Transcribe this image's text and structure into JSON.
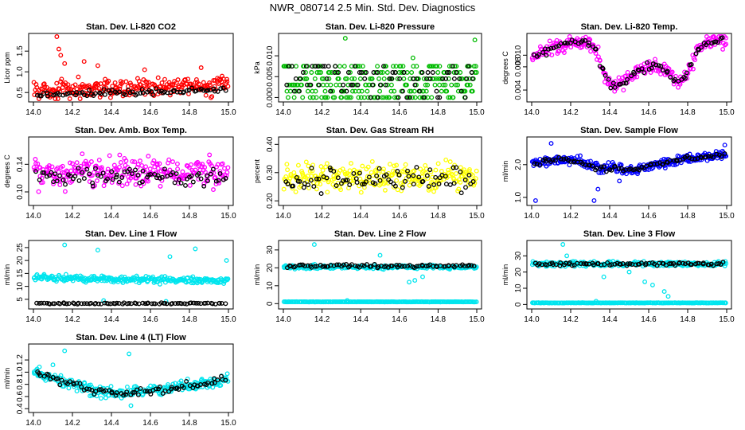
{
  "figure_title": "NWR_080714  2.5 Min. Std. Dev. Diagnostics",
  "chart_data": [
    {
      "type": "scatter",
      "title": "Stan. Dev. Li-820 CO2",
      "ylabel": "Licor ppm",
      "color": "#ff0000",
      "xlim": [
        14.0,
        15.0
      ],
      "ylim": [
        0.35,
        1.85
      ],
      "xticks": [
        "14.0",
        "14.2",
        "14.4",
        "14.6",
        "14.8",
        "15.0"
      ],
      "yticks": [
        {
          "v": 0.5,
          "label": "0.5"
        },
        {
          "v": 1.0,
          "label": "1.0"
        },
        {
          "v": 1.5,
          "label": "1.5"
        }
      ],
      "series": {
        "base": 0.55,
        "trend": 0.12,
        "spread": 0.22,
        "n": 260,
        "black_level": 0.45,
        "black_spread": 0.08,
        "outliers": [
          [
            14.12,
            1.85
          ],
          [
            14.13,
            1.55
          ],
          [
            14.14,
            1.4
          ],
          [
            14.16,
            1.2
          ],
          [
            14.26,
            1.25
          ],
          [
            14.33,
            1.15
          ],
          [
            14.57,
            1.05
          ],
          [
            14.86,
            1.1
          ]
        ]
      }
    },
    {
      "type": "scatter",
      "title": "Stan. Dev. Li-820 Pressure",
      "ylabel": "kPa",
      "color": "#00bb00",
      "xlim": [
        14.0,
        15.0
      ],
      "ylim": [
        -0.0003,
        0.0146
      ],
      "xticks": [
        "14.0",
        "14.2",
        "14.4",
        "14.6",
        "14.8",
        "15.0"
      ],
      "yticks": [
        {
          "v": 0.0,
          "label": "0.000"
        },
        {
          "v": 0.005,
          "label": "0.005"
        },
        {
          "v": 0.01,
          "label": "0.010"
        }
      ],
      "series": {
        "base": 0.003,
        "trend": 0,
        "spread": 0.004,
        "n": 260,
        "black_level": 0.003,
        "black_spread": 0.004,
        "quantized": [
          0.0,
          0.0015,
          0.003,
          0.0045,
          0.006,
          0.0075
        ],
        "outliers": [
          [
            14.32,
            0.0142
          ],
          [
            14.99,
            0.0138
          ],
          [
            14.67,
            0.0095
          ]
        ]
      }
    },
    {
      "type": "scatter",
      "title": "Stan. Dev. Li-820 Temp.",
      "ylabel": "degrees C",
      "color": "#ff00ff",
      "xlim": [
        14.0,
        15.0
      ],
      "ylim": [
        0.0025,
        0.0132
      ],
      "xticks": [
        "14.0",
        "14.2",
        "14.4",
        "14.6",
        "14.8",
        "15.0"
      ],
      "yticks": [
        {
          "v": 0.004,
          "label": "0.004"
        },
        {
          "v": 0.008,
          "label": "0.008"
        },
        {
          "v": 0.01,
          "label": "0.010"
        }
      ],
      "series": {
        "profile": [
          [
            14.0,
            0.0095
          ],
          [
            14.05,
            0.0105
          ],
          [
            14.1,
            0.011
          ],
          [
            14.2,
            0.0122
          ],
          [
            14.28,
            0.0122
          ],
          [
            14.33,
            0.0108
          ],
          [
            14.38,
            0.006
          ],
          [
            14.42,
            0.0045
          ],
          [
            14.47,
            0.0052
          ],
          [
            14.5,
            0.0062
          ],
          [
            14.55,
            0.0075
          ],
          [
            14.6,
            0.008
          ],
          [
            14.65,
            0.0082
          ],
          [
            14.7,
            0.007
          ],
          [
            14.75,
            0.005
          ],
          [
            14.8,
            0.007
          ],
          [
            14.85,
            0.0108
          ],
          [
            14.9,
            0.0122
          ],
          [
            15.0,
            0.0128
          ]
        ],
        "spread": 0.0013,
        "n": 260,
        "black_spread": 0.0006
      }
    },
    {
      "type": "scatter",
      "title": "Stan. Dev. Amb. Box Temp.",
      "ylabel": "degrees C",
      "color": "#ff00ff",
      "xlim": [
        14.0,
        15.0
      ],
      "ylim": [
        0.085,
        0.175
      ],
      "xticks": [
        "14.0",
        "14.2",
        "14.4",
        "14.6",
        "14.8",
        "15.0"
      ],
      "yticks": [
        {
          "v": 0.1,
          "label": "0.10"
        },
        {
          "v": 0.14,
          "label": "0.14"
        }
      ],
      "series": {
        "base": 0.128,
        "trend": 0,
        "spread": 0.022,
        "n": 260,
        "black_level": 0.123,
        "black_spread": 0.012
      }
    },
    {
      "type": "scatter",
      "title": "Stan. Dev. Gas Stream RH",
      "ylabel": "percent",
      "color": "#ffff00",
      "xlim": [
        14.0,
        15.0
      ],
      "ylim": [
        0.195,
        0.415
      ],
      "xticks": [
        "14.0",
        "14.2",
        "14.4",
        "14.6",
        "14.8",
        "15.0"
      ],
      "yticks": [
        {
          "v": 0.2,
          "label": "0.20"
        },
        {
          "v": 0.3,
          "label": "0.30"
        },
        {
          "v": 0.4,
          "label": "0.40"
        }
      ],
      "series": {
        "base": 0.285,
        "trend": 0,
        "spread": 0.045,
        "n": 260,
        "black_level": 0.28,
        "black_spread": 0.04
      }
    },
    {
      "type": "scatter",
      "title": "Stan. Dev. Sample Flow",
      "ylabel": "ml/min",
      "color": "#0000ff",
      "xlim": [
        14.0,
        15.0
      ],
      "ylim": [
        0.85,
        2.75
      ],
      "xticks": [
        "14.0",
        "14.2",
        "14.4",
        "14.6",
        "14.8",
        "15.0"
      ],
      "yticks": [
        {
          "v": 1.0,
          "label": "1.0"
        },
        {
          "v": 2.0,
          "label": "2.0"
        }
      ],
      "series": {
        "profile": [
          [
            14.0,
            2.05
          ],
          [
            14.2,
            2.15
          ],
          [
            14.35,
            1.9
          ],
          [
            14.5,
            1.85
          ],
          [
            14.65,
            2.0
          ],
          [
            14.8,
            2.2
          ],
          [
            15.0,
            2.3
          ]
        ],
        "spread": 0.15,
        "n": 260,
        "black_spread": 0.08,
        "outliers": [
          [
            14.02,
            0.9
          ],
          [
            14.32,
            0.9
          ],
          [
            14.34,
            1.25
          ],
          [
            14.45,
            1.5
          ],
          [
            14.1,
            2.65
          ],
          [
            14.99,
            2.6
          ]
        ]
      }
    },
    {
      "type": "scatter",
      "title": "Stan. Dev. Line 1 Flow",
      "ylabel": "ml/min",
      "color": "#00e5ee",
      "xlim": [
        14.0,
        15.0
      ],
      "ylim": [
        2.5,
        26.5
      ],
      "xticks": [
        "14.0",
        "14.2",
        "14.4",
        "14.6",
        "14.8",
        "15.0"
      ],
      "yticks": [
        {
          "v": 5,
          "label": "5"
        },
        {
          "v": 10,
          "label": "10"
        },
        {
          "v": 15,
          "label": "15"
        },
        {
          "v": 20,
          "label": "20"
        },
        {
          "v": 25,
          "label": "25"
        }
      ],
      "series": {
        "base": 13.5,
        "trend": -1.5,
        "spread": 1.2,
        "n": 260,
        "black_level": 3.4,
        "black_spread": 0.25,
        "outliers": [
          [
            14.16,
            26
          ],
          [
            14.33,
            24
          ],
          [
            14.7,
            21.5
          ],
          [
            14.83,
            24.5
          ],
          [
            14.99,
            20
          ],
          [
            14.36,
            4.5
          ],
          [
            14.68,
            4.2
          ]
        ]
      }
    },
    {
      "type": "scatter",
      "title": "Stan. Dev. Line 2 Flow",
      "ylabel": "ml/min",
      "color": "#00e5ee",
      "xlim": [
        14.0,
        15.0
      ],
      "ylim": [
        -1.2,
        33.5
      ],
      "xticks": [
        "14.0",
        "14.2",
        "14.4",
        "14.6",
        "14.8",
        "15.0"
      ],
      "yticks": [
        {
          "v": 0,
          "label": "0"
        },
        {
          "v": 10,
          "label": "10"
        },
        {
          "v": 20,
          "label": "20"
        },
        {
          "v": 30,
          "label": "30"
        }
      ],
      "series": {
        "base": 20.5,
        "trend": 0,
        "spread": 1.0,
        "n": 260,
        "black_level": 21,
        "black_spread": 0.8,
        "low_line": 1.0,
        "outliers": [
          [
            14.16,
            33
          ],
          [
            14.5,
            27
          ],
          [
            14.65,
            12
          ],
          [
            14.68,
            13
          ],
          [
            14.72,
            15
          ],
          [
            14.33,
            1.8
          ]
        ]
      }
    },
    {
      "type": "scatter",
      "title": "Stan. Dev. Line 3 Flow",
      "ylabel": "ml/min",
      "color": "#00e5ee",
      "xlim": [
        14.0,
        15.0
      ],
      "ylim": [
        -0.8,
        37.5
      ],
      "xticks": [
        "14.0",
        "14.2",
        "14.4",
        "14.6",
        "14.8",
        "15.0"
      ],
      "yticks": [
        {
          "v": 0,
          "label": "0"
        },
        {
          "v": 10,
          "label": "10"
        },
        {
          "v": 20,
          "label": "20"
        },
        {
          "v": 30,
          "label": "30"
        }
      ],
      "series": {
        "base": 25,
        "trend": 0,
        "spread": 1.5,
        "n": 260,
        "black_level": 25,
        "black_spread": 1.0,
        "low_line": 1.0,
        "outliers": [
          [
            14.16,
            37
          ],
          [
            14.18,
            30
          ],
          [
            14.37,
            17
          ],
          [
            14.5,
            20
          ],
          [
            14.58,
            14
          ],
          [
            14.62,
            12
          ],
          [
            14.68,
            8
          ],
          [
            14.7,
            5
          ],
          [
            14.33,
            2.0
          ]
        ]
      }
    },
    {
      "type": "scatter",
      "title": "Stan. Dev. Line 4 (LT) Flow",
      "ylabel": "ml/min",
      "color": "#00e5ee",
      "xlim": [
        14.0,
        15.0
      ],
      "ylim": [
        0.39,
        1.41
      ],
      "xticks": [
        "14.0",
        "14.2",
        "14.4",
        "14.6",
        "14.8",
        "15.0"
      ],
      "yticks": [
        {
          "v": 0.4,
          "label": "0.4"
        },
        {
          "v": 0.6,
          "label": "0.6"
        },
        {
          "v": 0.8,
          "label": "0.8"
        },
        {
          "v": 1.0,
          "label": "1.0"
        },
        {
          "v": 1.2,
          "label": "1.2"
        }
      ],
      "series": {
        "profile": [
          [
            14.0,
            1.0
          ],
          [
            14.15,
            0.85
          ],
          [
            14.3,
            0.72
          ],
          [
            14.45,
            0.65
          ],
          [
            14.6,
            0.7
          ],
          [
            14.75,
            0.75
          ],
          [
            14.9,
            0.82
          ],
          [
            15.0,
            0.9
          ]
        ],
        "spread": 0.09,
        "n": 260,
        "black_spread": 0.06,
        "outliers": [
          [
            14.16,
            1.35
          ],
          [
            14.49,
            1.3
          ],
          [
            14.1,
            1.12
          ],
          [
            14.5,
            0.45
          ]
        ]
      }
    }
  ]
}
